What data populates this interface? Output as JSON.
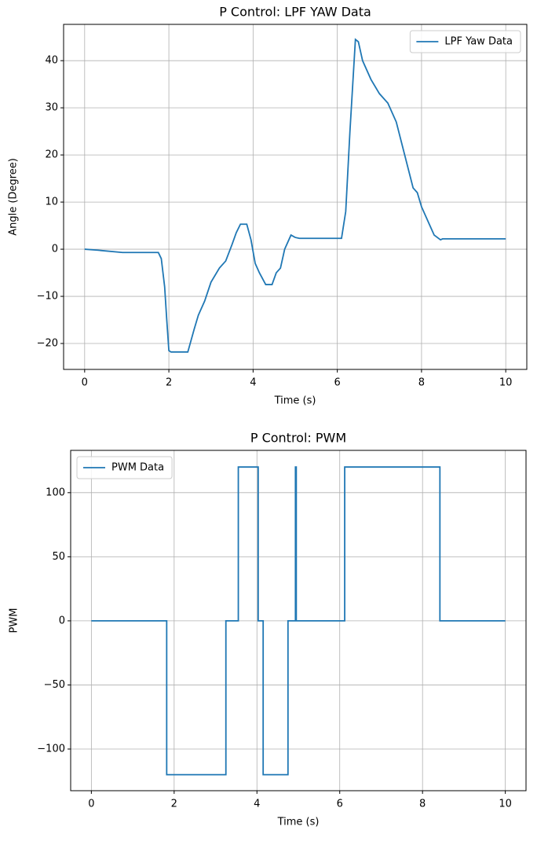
{
  "chart_data": [
    {
      "type": "line",
      "title": "P Control: LPF YAW Data",
      "x_label": "Time (s)",
      "y_label": "Angle (Degree)",
      "x": [
        0,
        0.3,
        0.9,
        1.2,
        1.75,
        1.82,
        1.9,
        1.95,
        2.0,
        2.05,
        2.2,
        2.45,
        2.6,
        2.7,
        2.85,
        3.0,
        3.2,
        3.35,
        3.5,
        3.6,
        3.7,
        3.8,
        3.85,
        3.95,
        4.05,
        4.15,
        4.3,
        4.45,
        4.55,
        4.65,
        4.75,
        4.9,
        5.0,
        5.1,
        5.5,
        6.1,
        6.2,
        6.3,
        6.43,
        6.5,
        6.6,
        6.8,
        7.0,
        7.2,
        7.4,
        7.6,
        7.8,
        7.9,
        8.0,
        8.2,
        8.3,
        8.45,
        8.5,
        9,
        10
      ],
      "series": [
        {
          "name": "LPF Yaw Data",
          "color": "#1f77b4",
          "values": [
            0,
            -0.2,
            -0.7,
            -0.7,
            -0.7,
            -2,
            -8,
            -15,
            -21.5,
            -21.8,
            -21.8,
            -21.8,
            -17,
            -14,
            -11,
            -7,
            -4,
            -2.5,
            1,
            3.5,
            5.3,
            5.3,
            5.3,
            2,
            -3,
            -5,
            -7.5,
            -7.5,
            -5,
            -4,
            0,
            3,
            2.5,
            2.3,
            2.3,
            2.3,
            8,
            25,
            44.5,
            44,
            40,
            36,
            33,
            31,
            27,
            20,
            13,
            12,
            9,
            5,
            3,
            2,
            2.2,
            2.2,
            2.2
          ]
        }
      ],
      "xlim": [
        -0.5,
        10.5
      ],
      "ylim": [
        -25.5,
        47.7
      ],
      "xticks": [
        0,
        2,
        4,
        6,
        8,
        10
      ],
      "yticks": [
        {
          "value": -20,
          "label": "−20"
        },
        {
          "value": -10,
          "label": "−10"
        },
        0,
        10,
        20,
        30,
        40
      ],
      "grid": true,
      "legend": "upper right"
    },
    {
      "type": "line",
      "title": "P Control: PWM",
      "x_label": "Time (s)",
      "y_label": "PWM",
      "x": [
        0,
        1.82,
        1.82,
        3.25,
        3.25,
        3.55,
        3.55,
        4.03,
        4.03,
        4.15,
        4.15,
        4.75,
        4.75,
        4.93,
        4.93,
        4.95,
        4.95,
        6.12,
        6.12,
        8.42,
        8.42,
        10
      ],
      "series": [
        {
          "name": "PWM Data",
          "color": "#1f77b4",
          "values": [
            0,
            0,
            -120,
            -120,
            0,
            0,
            120,
            120,
            0,
            0,
            -120,
            -120,
            0,
            0,
            120,
            120,
            0,
            0,
            120,
            120,
            0,
            0
          ]
        }
      ],
      "xlim": [
        -0.5,
        10.5
      ],
      "ylim": [
        -132.5,
        133
      ],
      "xticks": [
        0,
        2,
        4,
        6,
        8,
        10
      ],
      "yticks": [
        {
          "value": -100,
          "label": "−100"
        },
        {
          "value": -50,
          "label": "−50"
        },
        0,
        50,
        100
      ],
      "grid": true,
      "legend": "upper left"
    }
  ]
}
